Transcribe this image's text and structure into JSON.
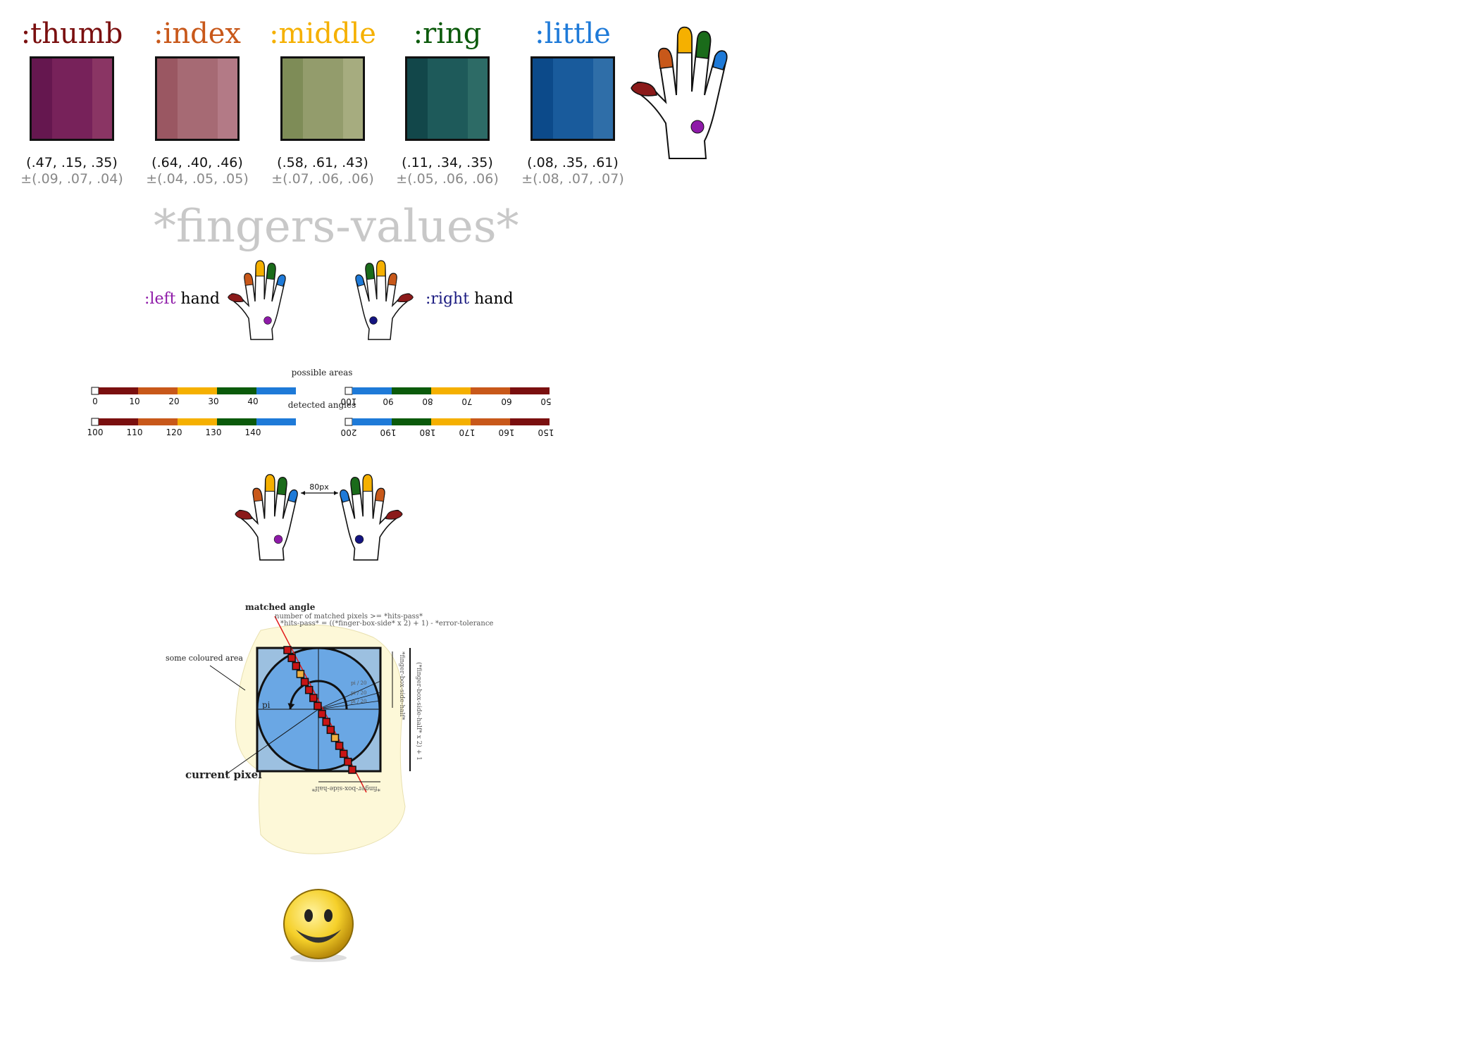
{
  "fingers": [
    {
      "name": ":thumb",
      "color": "#7a0f0f",
      "swatch": [
        "#65174f",
        "#77225a",
        "#8a3564"
      ],
      "mean": "(.47, .15, .35)",
      "dev": "±(.09, .07, .04)"
    },
    {
      "name": ":index",
      "color": "#c8581a",
      "swatch": [
        "#9a5762",
        "#a66a74",
        "#b37a86"
      ],
      "mean": "(.64, .40, .46)",
      "dev": "±(.04, .05, .05)"
    },
    {
      "name": ":middle",
      "color": "#f5b000",
      "swatch": [
        "#7e8c57",
        "#939c6c",
        "#a6ac7f"
      ],
      "mean": "(.58, .61, .43)",
      "dev": "±(.07, .06, .06)"
    },
    {
      "name": ":ring",
      "color": "#0b5a0b",
      "swatch": [
        "#12474a",
        "#1e5a5a",
        "#2d6b66"
      ],
      "mean": "(.11, .34, .35)",
      "dev": "±(.05, .06, .06)"
    },
    {
      "name": ":little",
      "color": "#1e7ad8",
      "swatch": [
        "#0c4a8a",
        "#195b9c",
        "#2f6ea8"
      ],
      "mean": "(.08, .35, .61)",
      "dev": "±(.08, .07, .07)"
    }
  ],
  "section_title": "*fingers-values*",
  "left_hand": {
    "keyword": ":left",
    "word": "hand",
    "color": "#8e1aa8"
  },
  "right_hand": {
    "keyword": ":right",
    "word": "hand",
    "color": "#1a1a80"
  },
  "bars": {
    "possible_label": "possible areas",
    "detected_label": "detected angles",
    "left_top_ticks": [
      "0",
      "10",
      "20",
      "30",
      "40"
    ],
    "left_bottom_ticks": [
      "100",
      "110",
      "120",
      "130",
      "140"
    ],
    "right_top_ticks": [
      "100",
      "90",
      "80",
      "70",
      "60",
      "50"
    ],
    "right_bottom_ticks": [
      "200",
      "190",
      "180",
      "170",
      "160",
      "150"
    ]
  },
  "gap_label": "80px",
  "detector": {
    "matched_angle": "matched angle",
    "hits_line1": "number of matched pixels  >= *hits-pass*",
    "hits_line2": "*hits-pass* = ((*finger-box-side* x 2) + 1) - *error-tolerance*",
    "coloured_area": "some coloured area",
    "current_pixel": "current pixel",
    "pi_label": "pi",
    "angle_steps": [
      "pi / 20",
      "pi / 20",
      "pi / 20"
    ],
    "box_half_right": "*finger-box-side-half*",
    "box_full_right": "(*finger-box-side-half* x 2) + 1",
    "box_half_bottom": "*finger-box-side-half*"
  }
}
